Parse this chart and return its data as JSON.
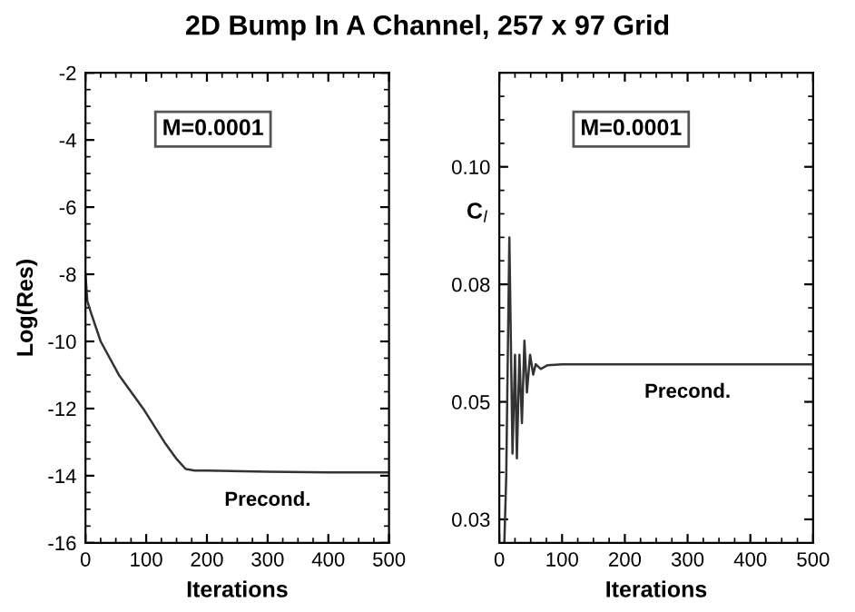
{
  "chart_data": [
    {
      "type": "line",
      "title": "2D Bump In A Channel, 257 x 97 Grid",
      "xlabel": "Iterations",
      "ylabel": "Log(Res)",
      "x": [
        0,
        3,
        10,
        25,
        55,
        95,
        130,
        150,
        165,
        180,
        200,
        300,
        400,
        500
      ],
      "series": [
        {
          "color": "#333333",
          "values": [
            -8,
            -8.8,
            -9.2,
            -10,
            -11,
            -12,
            -13,
            -13.5,
            -13.8,
            -13.85,
            -13.85,
            -13.88,
            -13.9,
            -13.9
          ]
        }
      ],
      "xlim": [
        0,
        500
      ],
      "ylim": [
        -16,
        -2
      ],
      "xticks": [
        0,
        100,
        200,
        300,
        400,
        500
      ],
      "yticks": [
        -16,
        -14,
        -12,
        -10,
        -8,
        -6,
        -4,
        -2
      ],
      "annotations": [
        "M=0.0001",
        {
          "text": "Precond.",
          "x": 300,
          "y": -13.9
        }
      ],
      "grid": false,
      "legend": false
    },
    {
      "type": "line",
      "xlabel": "Iterations",
      "ylabel": "C$_{l}$",
      "x": [
        8,
        11,
        16,
        21,
        25,
        28,
        32,
        36,
        40,
        44,
        49,
        54,
        58,
        66,
        77,
        100,
        200,
        300,
        400,
        500
      ],
      "series": [
        {
          "color": "#333333",
          "values": [
            0.02,
            0.034,
            0.085,
            0.039,
            0.06,
            0.038,
            0.06,
            0.0455,
            0.063,
            0.052,
            0.06,
            0.0558,
            0.058,
            0.057,
            0.0578,
            0.058,
            0.058,
            0.058,
            0.058,
            0.058
          ]
        }
      ],
      "xlim": [
        0,
        500
      ],
      "ylim": [
        0.02,
        0.12
      ],
      "xticks": [
        0,
        100,
        200,
        300,
        400,
        500
      ],
      "yticks": [
        {
          "value": 0.025,
          "label": "0.03"
        },
        {
          "value": 0.05,
          "label": "0.05"
        },
        {
          "value": 0.075,
          "label": "0.08"
        },
        {
          "value": 0.1,
          "label": "0.10"
        }
      ],
      "annotations": [
        "M=0.0001",
        {
          "text": "Precond.",
          "x": 300,
          "y": 0.058
        }
      ],
      "grid": false,
      "legend": false
    }
  ]
}
